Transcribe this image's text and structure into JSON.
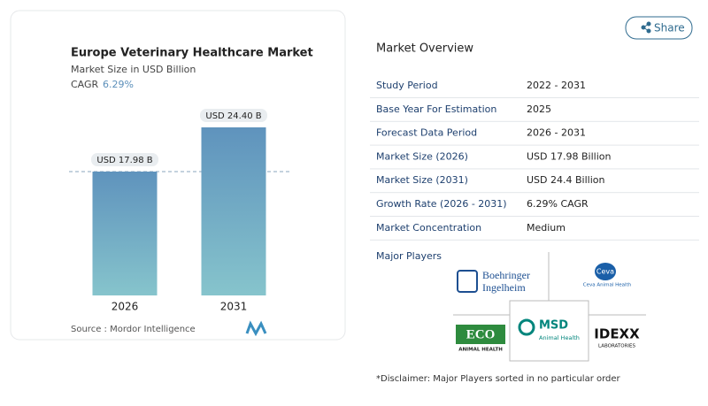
{
  "chart_data": {
    "type": "bar",
    "title": "Europe Veterinary Healthcare Market",
    "subtitle": "Market Size in USD Billion",
    "cagr_label": "CAGR",
    "cagr_value": "6.29%",
    "categories": [
      "2026",
      "2031"
    ],
    "values": [
      17.98,
      24.4
    ],
    "value_labels": [
      "USD 17.98 B",
      "USD 24.40 B"
    ],
    "color": "#5f93bd",
    "color_bottom": "#86c4cc",
    "source": "Source :  Mordor Intelligence"
  },
  "share": "Share",
  "overview": {
    "title": "Market Overview",
    "rows": [
      [
        "Study Period",
        "2022 - 2031"
      ],
      [
        "Base Year For Estimation",
        "2025"
      ],
      [
        "Forecast Data Period",
        "2026 - 2031"
      ],
      [
        "Market Size (2026)",
        "USD 17.98 Billion"
      ],
      [
        "Market Size (2031)",
        "USD 24.4 Billion"
      ],
      [
        "Growth Rate (2026 - 2031)",
        "6.29% CAGR"
      ],
      [
        "Market Concentration",
        "Medium"
      ]
    ]
  },
  "players": {
    "title": "Major Players",
    "logos": [
      [
        "Boehringer",
        "Ingelheim"
      ],
      [
        "Ceva",
        "Ceva Animal Health"
      ],
      [
        "ECO",
        "ANIMAL HEALTH"
      ],
      [
        "MSD",
        "Animal Health"
      ],
      [
        "IDEXX",
        "LABORATORIES"
      ]
    ]
  },
  "disclaimer": "*Disclaimer: Major Players sorted in no particular order"
}
